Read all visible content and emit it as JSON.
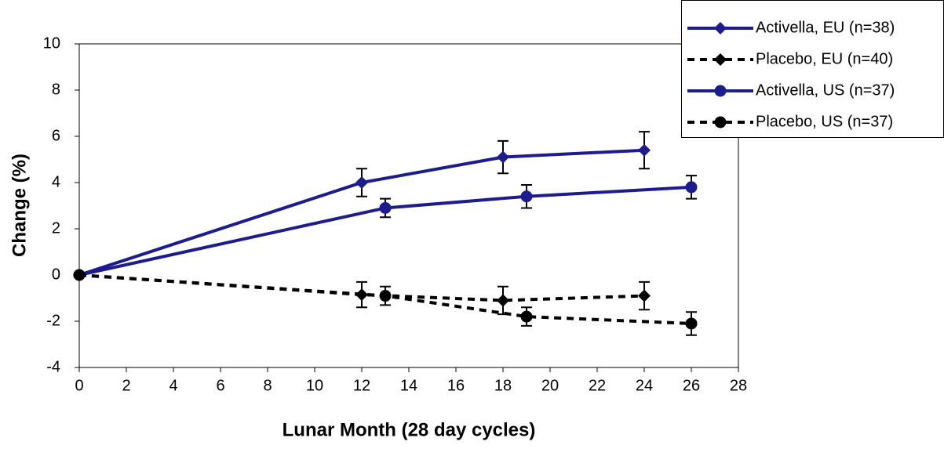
{
  "chart_data": {
    "type": "line",
    "x_label": "Lunar Month (28 day cycles)",
    "y_label": "Change (%)",
    "xlim": [
      0,
      28
    ],
    "xticks": [
      0,
      2,
      4,
      6,
      8,
      10,
      12,
      14,
      16,
      18,
      20,
      22,
      24,
      26,
      28
    ],
    "ylim": [
      -4,
      10
    ],
    "yticks": [
      -4,
      -2,
      0,
      2,
      4,
      6,
      8,
      10
    ],
    "grid": false,
    "legend": "top-right",
    "series": [
      {
        "name": "Activella, EU (n=38)",
        "color": "#1c1c8e",
        "marker": "diamond",
        "dashed": false,
        "x": [
          0,
          12,
          18,
          24
        ],
        "values": [
          0,
          4.0,
          5.1,
          5.4
        ],
        "errors": [
          null,
          0.6,
          0.7,
          0.8
        ]
      },
      {
        "name": "Placebo, EU (n=40)",
        "color": "#000000",
        "marker": "diamond",
        "dashed": true,
        "x": [
          0,
          12,
          18,
          24
        ],
        "values": [
          0,
          -0.85,
          -1.1,
          -0.9
        ],
        "errors": [
          null,
          0.55,
          0.6,
          0.6
        ]
      },
      {
        "name": "Activella, US (n=37)",
        "color": "#1c1c8e",
        "marker": "circle",
        "dashed": false,
        "x": [
          0,
          13,
          19,
          26
        ],
        "values": [
          0,
          2.9,
          3.4,
          3.8
        ],
        "errors": [
          null,
          0.4,
          0.5,
          0.5
        ]
      },
      {
        "name": "Placebo, US (n=37)",
        "color": "#000000",
        "marker": "circle",
        "dashed": true,
        "x": [
          0,
          13,
          19,
          26
        ],
        "values": [
          0,
          -0.9,
          -1.8,
          -2.1
        ],
        "errors": [
          null,
          0.4,
          0.4,
          0.5
        ]
      }
    ]
  }
}
